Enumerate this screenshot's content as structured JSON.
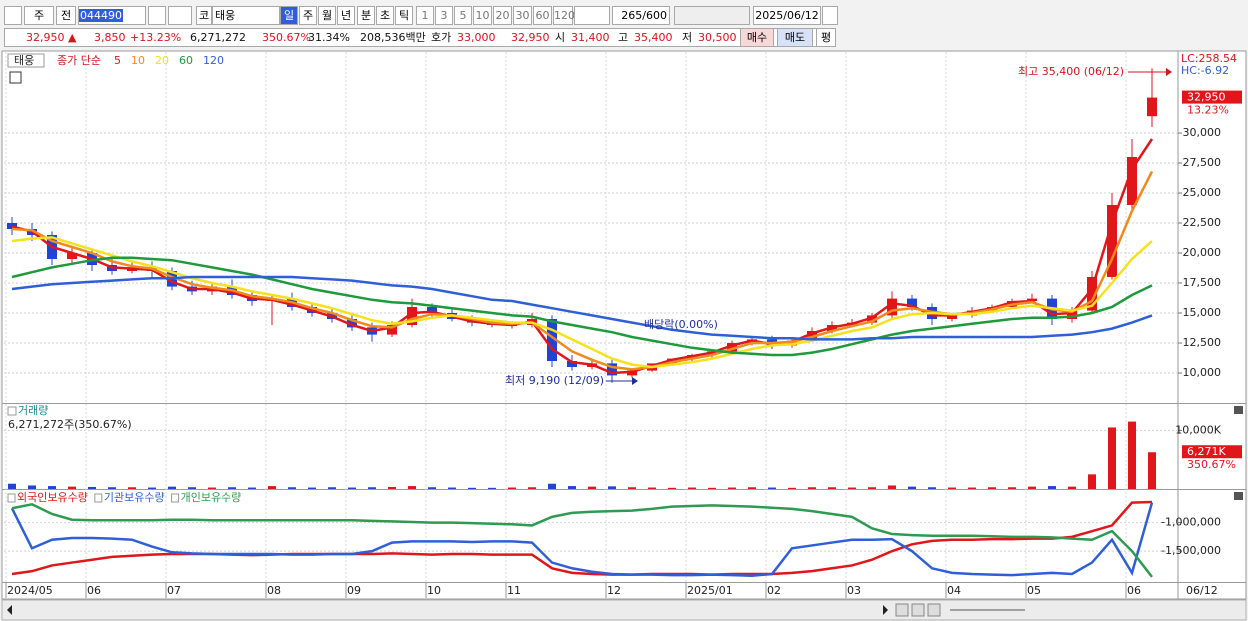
{
  "toolbar": {
    "market": "주",
    "prev": "전",
    "code": "044490",
    "kind": "코",
    "name": "태웅",
    "periods": [
      "일",
      "주",
      "월",
      "년",
      "분",
      "초",
      "틱"
    ],
    "intervals": [
      "1",
      "3",
      "5",
      "10",
      "20",
      "30",
      "60",
      "120"
    ],
    "count": "265",
    "max": "/600",
    "date": "2025/06/12"
  },
  "quote": {
    "price": "32,950 ▲",
    "change": "3,850",
    "rate": "+13.23%",
    "volume": "6,271,272",
    "volume_rate": "350.67%",
    "turnover": "31.34%",
    "amount": "208,536백만",
    "ask_label": "호가",
    "ask": "33,000",
    "bid": "32,950",
    "open_label": "시",
    "open": "31,400",
    "high_label": "고",
    "high": "35,400",
    "low_label": "저",
    "low": "30,500",
    "buy": "매수",
    "sell": "매도",
    "avg": "평"
  },
  "chart_data": [
    {
      "type": "candlestick",
      "title": "태웅",
      "ma_label": "종가 단순",
      "corner_labels": [
        "LC:258.54",
        "HC:-6.92"
      ],
      "annotations": [
        "최고 35,400 (06/12)",
        "최저 9,190 (12/09)",
        "배당락(0.00%)"
      ],
      "last_label": "32,950",
      "last_rate": "13.23%",
      "up_color": "#e0161b",
      "down_color": "#1f44d6",
      "ylim": [
        7500,
        36750
      ],
      "yticks": [
        {
          "value": 10000,
          "label": "10,000"
        },
        {
          "value": 12500,
          "label": "12,500"
        },
        {
          "value": 15000,
          "label": "15,000"
        },
        {
          "value": 17500,
          "label": "17,500"
        },
        {
          "value": 20000,
          "label": "20,000"
        },
        {
          "value": 22500,
          "label": "22,500"
        },
        {
          "value": 25000,
          "label": "25,000"
        },
        {
          "value": 27500,
          "label": "27,500"
        },
        {
          "value": 30000,
          "label": "30,000"
        }
      ],
      "grid": true,
      "open": [
        22500,
        22000,
        21500,
        19500,
        20000,
        19000,
        18500,
        18800,
        18500,
        17200,
        16800,
        17200,
        16500,
        16000,
        16200,
        15500,
        15000,
        14500,
        13800,
        13200,
        14000,
        15500,
        15000,
        14500,
        14200,
        14000,
        14000,
        14500,
        11000,
        10500,
        10800,
        9800,
        10200,
        10800,
        11200,
        11500,
        11800,
        12500,
        12800,
        12300,
        12700,
        13500,
        14000,
        14200,
        14800,
        16200,
        15500,
        14500,
        14800,
        15200,
        15500,
        16000,
        16200,
        14500,
        15200,
        18000,
        24000,
        31400
      ],
      "high": [
        23000,
        22500,
        21800,
        20500,
        20300,
        19500,
        19200,
        19300,
        18800,
        17700,
        17500,
        17800,
        16800,
        16500,
        16700,
        15800,
        15400,
        14800,
        14200,
        14300,
        16200,
        15800,
        15300,
        14800,
        14500,
        14300,
        15000,
        14800,
        11500,
        11000,
        11200,
        10300,
        10600,
        11200,
        11600,
        11900,
        12700,
        13000,
        13100,
        12900,
        13800,
        14300,
        14500,
        15000,
        16800,
        16500,
        15800,
        15000,
        15500,
        15700,
        16200,
        16600,
        16500,
        15500,
        18500,
        25000,
        29500,
        35400
      ],
      "low": [
        21500,
        21000,
        19000,
        19200,
        18500,
        18200,
        18300,
        18000,
        16900,
        16500,
        16500,
        16200,
        15600,
        14000,
        15200,
        14700,
        14200,
        13500,
        12600,
        13000,
        13800,
        14700,
        14300,
        13900,
        13800,
        13700,
        13800,
        10500,
        10200,
        10300,
        9190,
        9600,
        10100,
        10700,
        11000,
        11300,
        11700,
        12300,
        12000,
        12100,
        12600,
        13300,
        13800,
        14000,
        14600,
        15200,
        14000,
        14300,
        14600,
        15000,
        15300,
        15800,
        14000,
        14200,
        15000,
        17800,
        23500,
        30500
      ],
      "close": [
        22000,
        21500,
        19500,
        20000,
        19000,
        18500,
        18800,
        18500,
        17200,
        16800,
        17200,
        16500,
        16000,
        16200,
        15500,
        15000,
        14500,
        13800,
        13200,
        14000,
        15500,
        15000,
        14500,
        14200,
        14000,
        14000,
        14500,
        11000,
        10500,
        10800,
        9800,
        10200,
        10800,
        11200,
        11500,
        11800,
        12500,
        12800,
        12300,
        12700,
        13500,
        14000,
        14200,
        14800,
        16200,
        15500,
        14500,
        14800,
        15200,
        15500,
        16000,
        16200,
        14500,
        15200,
        18000,
        24000,
        28000,
        32950
      ],
      "series": [
        {
          "name": "5",
          "color": "#e0161b",
          "values": [
            22200,
            21800,
            20500,
            20000,
            19500,
            18800,
            18700,
            18600,
            17600,
            17000,
            17000,
            16700,
            16200,
            16100,
            15700,
            15200,
            14700,
            14000,
            13500,
            13800,
            15000,
            15100,
            14700,
            14300,
            14100,
            14000,
            14300,
            12000,
            10900,
            10700,
            10000,
            10100,
            10600,
            11100,
            11400,
            11700,
            12300,
            12700,
            12400,
            12600,
            13300,
            13800,
            14100,
            14600,
            15800,
            15600,
            14800,
            14800,
            15100,
            15400,
            15900,
            16000,
            14900,
            15000,
            17000,
            22500,
            27000,
            29500
          ]
        },
        {
          "name": "10",
          "color": "#f08a1c",
          "values": [
            22000,
            21900,
            21000,
            20500,
            20000,
            19300,
            18900,
            18700,
            18000,
            17400,
            17100,
            16900,
            16400,
            16200,
            15900,
            15400,
            15000,
            14400,
            13900,
            13800,
            14500,
            14900,
            14800,
            14500,
            14200,
            14100,
            14200,
            13000,
            11800,
            11100,
            10500,
            10300,
            10500,
            10900,
            11200,
            11500,
            12000,
            12500,
            12500,
            12600,
            13000,
            13500,
            13900,
            14300,
            15200,
            15400,
            15100,
            14900,
            15000,
            15300,
            15700,
            15900,
            15300,
            15100,
            16000,
            19500,
            23500,
            26800
          ]
        },
        {
          "name": "20",
          "color": "#f5e11e",
          "values": [
            21000,
            21200,
            21300,
            20800,
            20300,
            19800,
            19300,
            18900,
            18400,
            17900,
            17500,
            17200,
            16800,
            16500,
            16200,
            15800,
            15400,
            14900,
            14400,
            14100,
            14300,
            14600,
            14800,
            14600,
            14400,
            14200,
            14200,
            13600,
            12800,
            12000,
            11200,
            10700,
            10500,
            10700,
            10900,
            11200,
            11600,
            12000,
            12300,
            12400,
            12700,
            13100,
            13500,
            13800,
            14500,
            14900,
            15000,
            14900,
            14900,
            15100,
            15400,
            15600,
            15400,
            15200,
            15600,
            17500,
            19500,
            21000
          ]
        },
        {
          "name": "60",
          "color": "#1e9a3c",
          "values": [
            18000,
            18400,
            18800,
            19100,
            19400,
            19600,
            19600,
            19500,
            19400,
            19100,
            18800,
            18500,
            18200,
            17800,
            17400,
            17000,
            16700,
            16400,
            16100,
            15900,
            15800,
            15600,
            15400,
            15200,
            15000,
            14800,
            14700,
            14300,
            14000,
            13700,
            13400,
            13000,
            12700,
            12400,
            12100,
            11900,
            11700,
            11600,
            11500,
            11500,
            11700,
            12000,
            12400,
            12800,
            13200,
            13500,
            13700,
            13900,
            14100,
            14300,
            14500,
            14600,
            14600,
            14700,
            15000,
            15500,
            16500,
            17300
          ]
        },
        {
          "name": "120",
          "color": "#2f5fd8",
          "values": [
            17000,
            17200,
            17400,
            17500,
            17600,
            17700,
            17800,
            17900,
            17900,
            18000,
            18000,
            18000,
            18000,
            18000,
            18000,
            17900,
            17800,
            17700,
            17500,
            17300,
            17200,
            17000,
            16700,
            16400,
            16100,
            16000,
            15700,
            15400,
            15100,
            14800,
            14500,
            14200,
            13900,
            13600,
            13400,
            13200,
            13100,
            13000,
            12900,
            12900,
            12800,
            12800,
            12800,
            12900,
            12900,
            13000,
            13000,
            13000,
            13000,
            13000,
            13000,
            13000,
            13100,
            13200,
            13400,
            13700,
            14200,
            14800
          ]
        }
      ]
    },
    {
      "type": "bar",
      "title": "거래량",
      "subtitle": "6,271,272주(350.67%)",
      "last_label": "6,271K",
      "last_rate": "350.67%",
      "ylim": [
        0,
        14500
      ],
      "yticks": [
        {
          "value": 10000,
          "label": "10,000K"
        }
      ],
      "values": [
        900,
        600,
        500,
        400,
        350,
        300,
        300,
        250,
        400,
        300,
        250,
        300,
        250,
        500,
        300,
        250,
        300,
        250,
        300,
        350,
        500,
        300,
        250,
        200,
        200,
        250,
        300,
        900,
        500,
        400,
        450,
        300,
        250,
        200,
        250,
        200,
        250,
        300,
        250,
        200,
        300,
        300,
        250,
        300,
        600,
        400,
        300,
        250,
        250,
        300,
        300,
        400,
        500,
        400,
        2500,
        10500,
        11500,
        6271
      ]
    },
    {
      "type": "line",
      "ylim": [
        -2040000,
        -430000
      ],
      "yticks": [
        {
          "value": -1000000,
          "label": "-1,000,000"
        },
        {
          "value": -1500000,
          "label": "-1,500,000"
        }
      ],
      "categories": [
        "2024/05",
        null,
        null,
        null,
        "06",
        null,
        null,
        null,
        "07",
        null,
        null,
        null,
        null,
        "08",
        null,
        null,
        null,
        "09",
        null,
        null,
        null,
        "10",
        null,
        null,
        null,
        "11",
        null,
        null,
        null,
        null,
        "12",
        null,
        null,
        null,
        "2025/01",
        null,
        null,
        null,
        "02",
        null,
        null,
        null,
        "03",
        null,
        null,
        null,
        null,
        "04",
        null,
        null,
        null,
        "05",
        null,
        null,
        null,
        null,
        "06",
        null
      ],
      "x_end_label": "06/12",
      "series": [
        {
          "name": "외국인보유수량",
          "color": "#e0161b",
          "values": [
            -1900000,
            -1850000,
            -1750000,
            -1700000,
            -1650000,
            -1600000,
            -1580000,
            -1560000,
            -1550000,
            -1550000,
            -1550000,
            -1560000,
            -1570000,
            -1560000,
            -1550000,
            -1550000,
            -1550000,
            -1550000,
            -1550000,
            -1540000,
            -1550000,
            -1560000,
            -1550000,
            -1550000,
            -1560000,
            -1560000,
            -1560000,
            -1800000,
            -1880000,
            -1900000,
            -1910000,
            -1910000,
            -1900000,
            -1900000,
            -1900000,
            -1910000,
            -1900000,
            -1900000,
            -1900000,
            -1880000,
            -1850000,
            -1800000,
            -1750000,
            -1650000,
            -1500000,
            -1380000,
            -1320000,
            -1300000,
            -1300000,
            -1290000,
            -1290000,
            -1280000,
            -1280000,
            -1250000,
            -1150000,
            -1050000,
            -650000,
            -640000
          ]
        },
        {
          "name": "기관보유수량",
          "color": "#2f5fd8",
          "values": [
            -750000,
            -1450000,
            -1300000,
            -1270000,
            -1270000,
            -1280000,
            -1300000,
            -1420000,
            -1520000,
            -1540000,
            -1550000,
            -1550000,
            -1550000,
            -1550000,
            -1560000,
            -1560000,
            -1550000,
            -1550000,
            -1500000,
            -1350000,
            -1330000,
            -1330000,
            -1330000,
            -1340000,
            -1330000,
            -1330000,
            -1350000,
            -1700000,
            -1800000,
            -1860000,
            -1900000,
            -1910000,
            -1910000,
            -1920000,
            -1920000,
            -1910000,
            -1920000,
            -1930000,
            -1900000,
            -1450000,
            -1400000,
            -1350000,
            -1300000,
            -1300000,
            -1290000,
            -1500000,
            -1800000,
            -1880000,
            -1900000,
            -1910000,
            -1920000,
            -1900000,
            -1880000,
            -1900000,
            -1700000,
            -1300000,
            -1880000,
            -650000
          ]
        },
        {
          "name": "개인보유수량",
          "color": "#2e9a52",
          "values": [
            -750000,
            -680000,
            -850000,
            -950000,
            -960000,
            -960000,
            -960000,
            -960000,
            -950000,
            -950000,
            -960000,
            -960000,
            -960000,
            -960000,
            -960000,
            -960000,
            -960000,
            -960000,
            -970000,
            -980000,
            -990000,
            -1000000,
            -1000000,
            -1010000,
            -1020000,
            -1030000,
            -1050000,
            -900000,
            -830000,
            -810000,
            -800000,
            -790000,
            -760000,
            -720000,
            -710000,
            -700000,
            -710000,
            -720000,
            -740000,
            -760000,
            -800000,
            -850000,
            -900000,
            -1100000,
            -1200000,
            -1220000,
            -1230000,
            -1230000,
            -1230000,
            -1240000,
            -1250000,
            -1250000,
            -1260000,
            -1280000,
            -1300000,
            -1150000,
            -1500000,
            -1950000
          ]
        }
      ]
    }
  ]
}
